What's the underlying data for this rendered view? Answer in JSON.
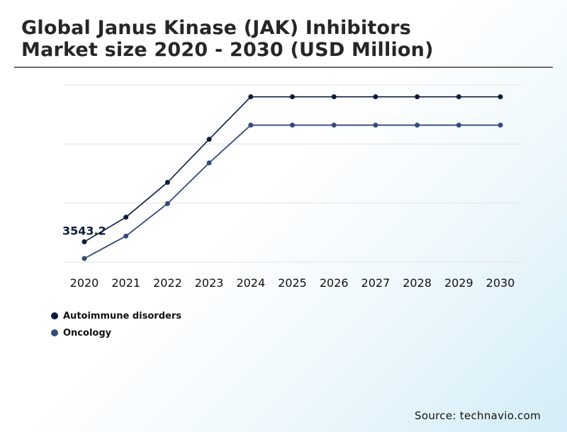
{
  "header": {
    "title_line1": "Global Janus Kinase (JAK) Inhibitors",
    "title_line2": "Market size 2020 - 2030 (USD Million)"
  },
  "footer": {
    "source": "Source: technavio.com"
  },
  "colors": {
    "autoimmune": "#0b1c3d",
    "oncology": "#344a78",
    "grid": "#e3e3e3",
    "label": "#0b1c3d"
  },
  "chart_data": {
    "type": "line",
    "title": "Global Janus Kinase (JAK) Inhibitors Market size 2020 - 2030 (USD Million)",
    "xlabel": "",
    "ylabel": "",
    "x": [
      "2020",
      "2021",
      "2022",
      "2023",
      "2024",
      "2025",
      "2026",
      "2027",
      "2028",
      "2029",
      "2030"
    ],
    "ylim": [
      3200,
      6200
    ],
    "grid": true,
    "legend_position": "bottom-left",
    "series": [
      {
        "name": "Autoimmune disorders",
        "values": [
          3543.2,
          3960,
          4550,
          5280,
          6000,
          6000,
          6000,
          6000,
          6000,
          6000,
          6000
        ]
      },
      {
        "name": "Oncology",
        "values": [
          3260,
          3640,
          4190,
          4880,
          5520,
          5520,
          5520,
          5520,
          5520,
          5520,
          5520
        ]
      }
    ],
    "annotations": [
      {
        "series": 0,
        "index": 0,
        "text": "3543.2"
      }
    ]
  }
}
